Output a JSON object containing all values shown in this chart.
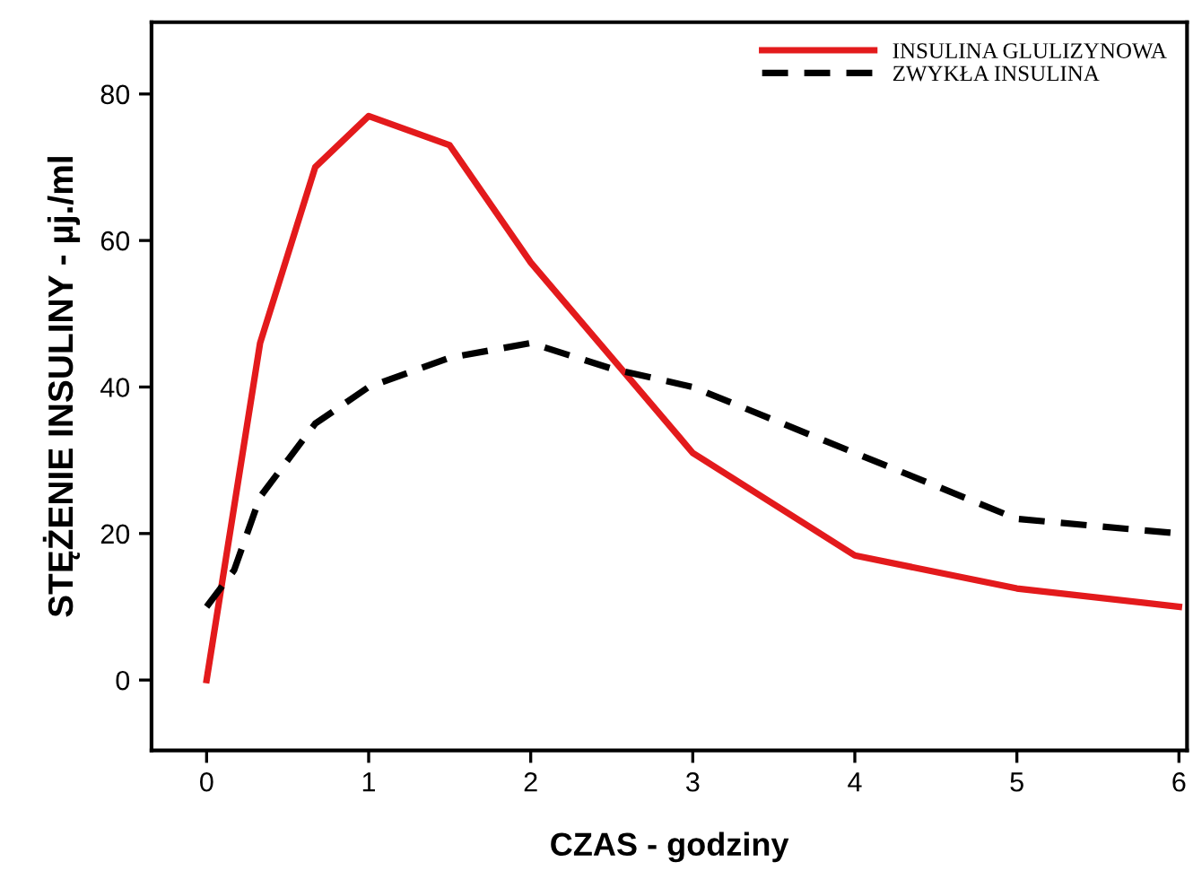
{
  "chart_data": {
    "type": "line",
    "xlabel": "CZAS - godziny",
    "ylabel": "STĘŻENIE INSULINY - µj./ml",
    "xlim": [
      -0.34,
      6.05
    ],
    "ylim": [
      -9.6,
      89.8
    ],
    "xticks": [
      0,
      1,
      2,
      3,
      4,
      5,
      6
    ],
    "yticks": [
      0,
      20,
      40,
      60,
      80
    ],
    "grid": false,
    "legend": "top right",
    "series": [
      {
        "name": "INSULINA GLULIZYNOWA",
        "color": "#e31a1c",
        "line_style": "solid",
        "x": [
          0,
          0.33,
          0.67,
          1,
          1.5,
          2,
          3,
          4,
          5,
          6
        ],
        "values": [
          0,
          46,
          70,
          77,
          73,
          57,
          31,
          17,
          12.5,
          10
        ]
      },
      {
        "name": "ZWYKŁA INSULINA",
        "color": "#000000",
        "line_style": "dashed",
        "x": [
          0,
          0.17,
          0.33,
          0.67,
          1,
          1.5,
          2,
          2.5,
          3,
          4,
          5,
          6
        ],
        "values": [
          10,
          15,
          25,
          35,
          40,
          44,
          46,
          42.5,
          40,
          31,
          22,
          20
        ]
      }
    ]
  }
}
